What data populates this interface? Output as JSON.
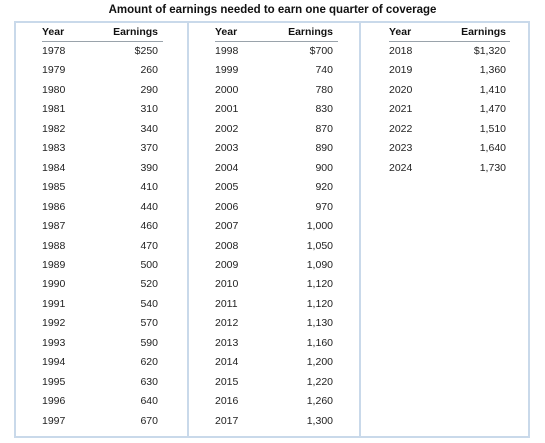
{
  "title": "Amount of earnings needed to earn one quarter of coverage",
  "headers": {
    "year": "Year",
    "earnings": "Earnings"
  },
  "columns": [
    {
      "rows": [
        {
          "year": "1978",
          "earnings": "$250"
        },
        {
          "year": "1979",
          "earnings": "260"
        },
        {
          "year": "1980",
          "earnings": "290"
        },
        {
          "year": "1981",
          "earnings": "310"
        },
        {
          "year": "1982",
          "earnings": "340"
        },
        {
          "year": "1983",
          "earnings": "370"
        },
        {
          "year": "1984",
          "earnings": "390"
        },
        {
          "year": "1985",
          "earnings": "410"
        },
        {
          "year": "1986",
          "earnings": "440"
        },
        {
          "year": "1987",
          "earnings": "460"
        },
        {
          "year": "1988",
          "earnings": "470"
        },
        {
          "year": "1989",
          "earnings": "500"
        },
        {
          "year": "1990",
          "earnings": "520"
        },
        {
          "year": "1991",
          "earnings": "540"
        },
        {
          "year": "1992",
          "earnings": "570"
        },
        {
          "year": "1993",
          "earnings": "590"
        },
        {
          "year": "1994",
          "earnings": "620"
        },
        {
          "year": "1995",
          "earnings": "630"
        },
        {
          "year": "1996",
          "earnings": "640"
        },
        {
          "year": "1997",
          "earnings": "670"
        }
      ]
    },
    {
      "rows": [
        {
          "year": "1998",
          "earnings": "$700"
        },
        {
          "year": "1999",
          "earnings": "740"
        },
        {
          "year": "2000",
          "earnings": "780"
        },
        {
          "year": "2001",
          "earnings": "830"
        },
        {
          "year": "2002",
          "earnings": "870"
        },
        {
          "year": "2003",
          "earnings": "890"
        },
        {
          "year": "2004",
          "earnings": "900"
        },
        {
          "year": "2005",
          "earnings": "920"
        },
        {
          "year": "2006",
          "earnings": "970"
        },
        {
          "year": "2007",
          "earnings": "1,000"
        },
        {
          "year": "2008",
          "earnings": "1,050"
        },
        {
          "year": "2009",
          "earnings": "1,090"
        },
        {
          "year": "2010",
          "earnings": "1,120"
        },
        {
          "year": "2011",
          "earnings": "1,120"
        },
        {
          "year": "2012",
          "earnings": "1,130"
        },
        {
          "year": "2013",
          "earnings": "1,160"
        },
        {
          "year": "2014",
          "earnings": "1,200"
        },
        {
          "year": "2015",
          "earnings": "1,220"
        },
        {
          "year": "2016",
          "earnings": "1,260"
        },
        {
          "year": "2017",
          "earnings": "1,300"
        }
      ]
    },
    {
      "rows": [
        {
          "year": "2018",
          "earnings": "$1,320"
        },
        {
          "year": "2019",
          "earnings": "1,360"
        },
        {
          "year": "2020",
          "earnings": "1,410"
        },
        {
          "year": "2021",
          "earnings": "1,470"
        },
        {
          "year": "2022",
          "earnings": "1,510"
        },
        {
          "year": "2023",
          "earnings": "1,640"
        },
        {
          "year": "2024",
          "earnings": "1,730"
        }
      ]
    }
  ]
}
